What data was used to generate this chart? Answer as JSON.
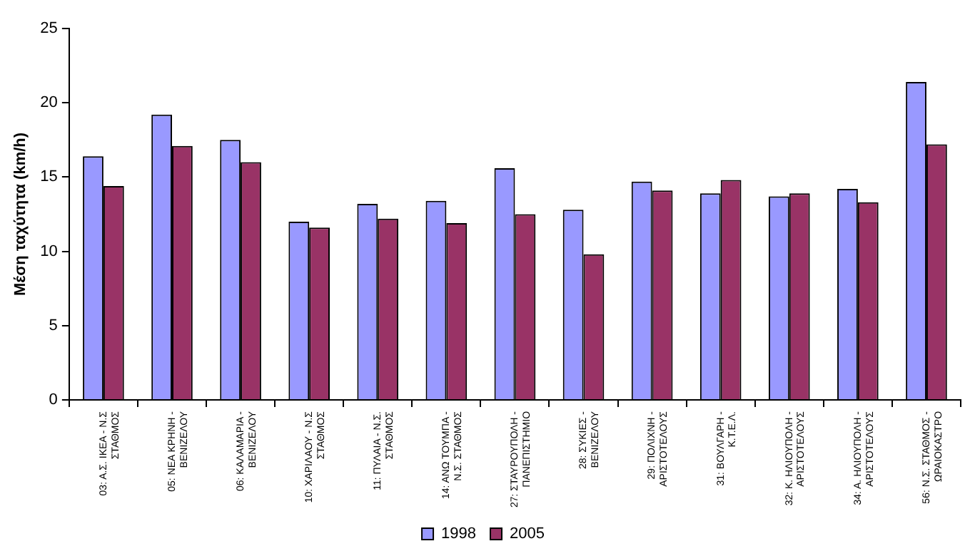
{
  "chart_data": {
    "type": "bar",
    "ylabel": "Μέση ταχύτητα (km/h)",
    "categories": [
      "03: Α.Σ. ΙΚΕΑ - Ν.Σ\nΣΤΑΘΜΟΣ",
      "05: ΝΕΑ ΚΡΗΝΗ -\nΒΕΝΙΖΕΛΟΥ",
      "06: ΚΑΛΑΜΑΡΙΑ -\nΒΕΝΙΖΕΛΟΥ",
      "10: ΧΑΡΙΛΑΟΥ - Ν.Σ\nΣΤΑΘΜΟΣ",
      "11: ΠΥΛΑΙΑ - Ν.Σ.\nΣΤΑΘΜΟΣ",
      "14: ΑΝΩ ΤΟΥΜΠΑ -\nΝ.Σ. ΣΤΑΘΜΟΣ",
      "27: ΣΤΑΥΡΟΥΠΟΛΗ -\nΠΑΝΕΠΙΣΤΗΜΙΟ",
      "28: ΣΥΚΙΕΣ -\nΒΕΝΙΖΕΛΟΥ",
      "29: ΠΟΛΙΧΝΗ -\nΑΡΙΣΤΟΤΕΛΟΥΣ",
      "31: ΒΟΥΛΓΑΡΗ -\nΚ.Τ.Ε.Λ.",
      "32: Κ. ΗΛΙΟΥΠΟΛΗ -\nΑΡΙΣΤΟΤΕΛΟΥΣ",
      "34: Α. ΗΛΙΟΥΠΟΛΗ -\nΑΡΙΣΤΟΤΕΛΟΥΣ",
      "56: Ν.Σ. ΣΤΑΘΜΟΣ -\nΩΡΑΙΟΚΑΣΤΡΟ"
    ],
    "series": [
      {
        "name": "1998",
        "color": "#9999ff",
        "values": [
          16.4,
          19.2,
          17.5,
          12.0,
          13.2,
          13.4,
          15.6,
          12.8,
          14.7,
          13.9,
          13.7,
          14.2,
          21.4
        ]
      },
      {
        "name": "2005",
        "color": "#993366",
        "values": [
          14.4,
          17.1,
          16.0,
          11.6,
          12.2,
          11.9,
          12.5,
          9.8,
          14.1,
          14.8,
          13.9,
          13.3,
          17.2
        ]
      }
    ],
    "ylim": [
      0,
      25
    ],
    "yticks": [
      0,
      5,
      10,
      15,
      20,
      25
    ],
    "grid": false,
    "legend": "bottom"
  }
}
